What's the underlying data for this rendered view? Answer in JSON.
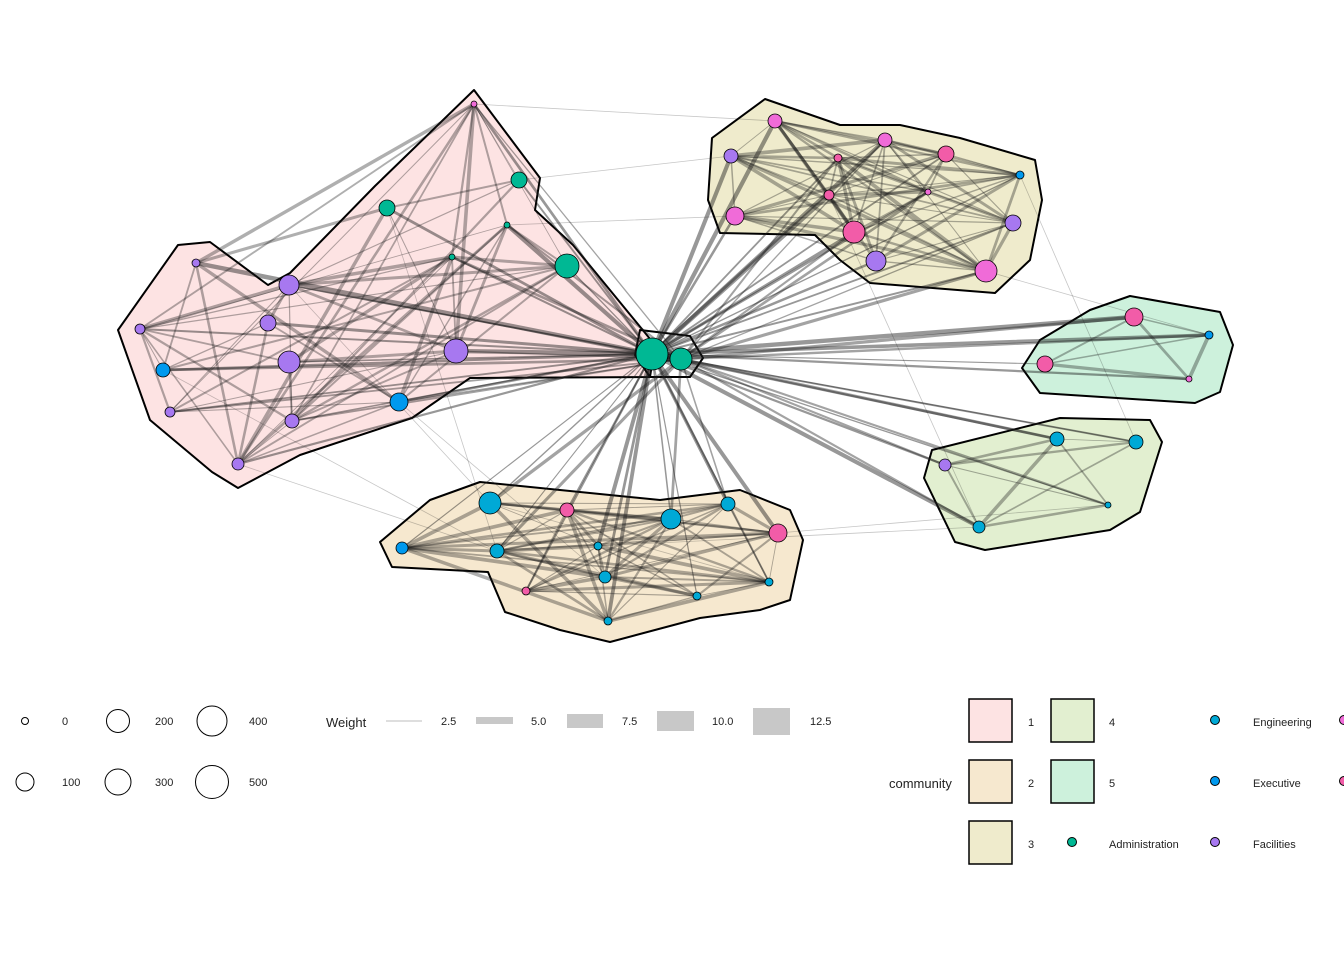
{
  "legend": {
    "size_title": "",
    "size_entries": [
      "0",
      "100",
      "200",
      "300",
      "400",
      "500"
    ],
    "weight_title": "Weight",
    "weight_entries": [
      "2.5",
      "5.0",
      "7.5",
      "10.0",
      "12.5"
    ],
    "community_title": "community",
    "communities": [
      {
        "id": "1",
        "color": "#fde3e3"
      },
      {
        "id": "2",
        "color": "#f6e8cf"
      },
      {
        "id": "3",
        "color": "#efebcc"
      },
      {
        "id": "4",
        "color": "#e2efd0"
      },
      {
        "id": "5",
        "color": "#cdf1dc"
      }
    ],
    "department_title": "",
    "departments": [
      {
        "name": "Administration",
        "color": "#00b894"
      },
      {
        "name": "Engineering",
        "color": "#00a9d6"
      },
      {
        "name": "Executive",
        "color": "#0099ee"
      },
      {
        "name": "Facilities",
        "color": "#a778f0"
      }
    ],
    "cut_off_colors": [
      "#f06bd8",
      "#f25ca8"
    ]
  },
  "colors": {
    "administration": "#00b894",
    "engineering": "#00a9d6",
    "executive": "#0099ee",
    "facilities": "#a778f0",
    "magenta": "#f06bd8",
    "pink": "#f25ca8",
    "edge": "#1a1a1a",
    "hull_stroke": "#000000"
  }
}
